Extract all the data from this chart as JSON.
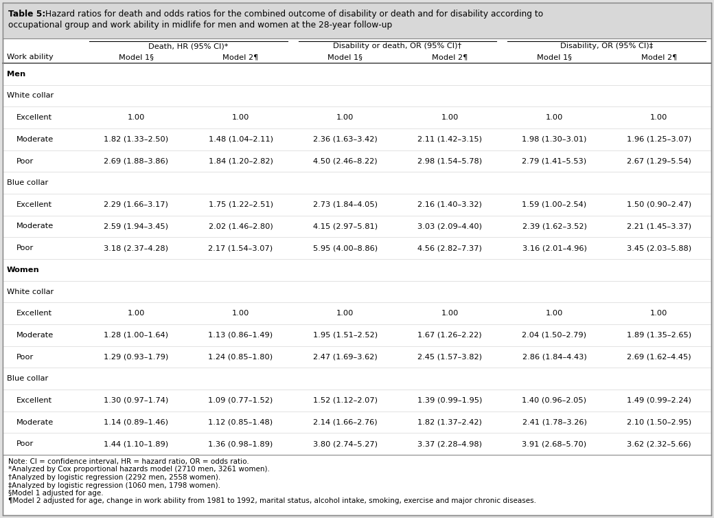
{
  "title_bold": "Table 5:",
  "title_rest": " Hazard ratios for death and odds ratios for the combined outcome of disability or death and for disability according to\noccupational group and work ability in midlife for men and women at the 28-year follow-up",
  "col_group_headers": [
    "Death, HR (95% CI)*",
    "Disability or death, OR (95% CI)†",
    "Disability, OR (95% CI)‡"
  ],
  "col_sub_headers": [
    "Work ability",
    "Model 1§",
    "Model 2¶",
    "Model 1§",
    "Model 2¶",
    "Model 1§",
    "Model 2¶"
  ],
  "rows": [
    {
      "label": "Men",
      "bold": true,
      "indent": 0,
      "data": [
        "",
        "",
        "",
        "",
        "",
        ""
      ]
    },
    {
      "label": "White collar",
      "bold": false,
      "indent": 0,
      "data": [
        "",
        "",
        "",
        "",
        "",
        ""
      ]
    },
    {
      "label": "Excellent",
      "bold": false,
      "indent": 1,
      "data": [
        "1.00",
        "1.00",
        "1.00",
        "1.00",
        "1.00",
        "1.00"
      ]
    },
    {
      "label": "Moderate",
      "bold": false,
      "indent": 1,
      "data": [
        "1.82 (1.33–2.50)",
        "1.48 (1.04–2.11)",
        "2.36 (1.63–3.42)",
        "2.11 (1.42–3.15)",
        "1.98 (1.30–3.01)",
        "1.96 (1.25–3.07)"
      ]
    },
    {
      "label": "Poor",
      "bold": false,
      "indent": 1,
      "data": [
        "2.69 (1.88–3.86)",
        "1.84 (1.20–2.82)",
        "4.50 (2.46–8.22)",
        "2.98 (1.54–5.78)",
        "2.79 (1.41–5.53)",
        "2.67 (1.29–5.54)"
      ]
    },
    {
      "label": "Blue collar",
      "bold": false,
      "indent": 0,
      "data": [
        "",
        "",
        "",
        "",
        "",
        ""
      ]
    },
    {
      "label": "Excellent",
      "bold": false,
      "indent": 1,
      "data": [
        "2.29 (1.66–3.17)",
        "1.75 (1.22–2.51)",
        "2.73 (1.84–4.05)",
        "2.16 (1.40–3.32)",
        "1.59 (1.00–2.54)",
        "1.50 (0.90–2.47)"
      ]
    },
    {
      "label": "Moderate",
      "bold": false,
      "indent": 1,
      "data": [
        "2.59 (1.94–3.45)",
        "2.02 (1.46–2.80)",
        "4.15 (2.97–5.81)",
        "3.03 (2.09–4.40)",
        "2.39 (1.62–3.52)",
        "2.21 (1.45–3.37)"
      ]
    },
    {
      "label": "Poor",
      "bold": false,
      "indent": 1,
      "data": [
        "3.18 (2.37–4.28)",
        "2.17 (1.54–3.07)",
        "5.95 (4.00–8.86)",
        "4.56 (2.82–7.37)",
        "3.16 (2.01–4.96)",
        "3.45 (2.03–5.88)"
      ]
    },
    {
      "label": "Women",
      "bold": true,
      "indent": 0,
      "data": [
        "",
        "",
        "",
        "",
        "",
        ""
      ]
    },
    {
      "label": "White collar",
      "bold": false,
      "indent": 0,
      "data": [
        "",
        "",
        "",
        "",
        "",
        ""
      ]
    },
    {
      "label": "Excellent",
      "bold": false,
      "indent": 1,
      "data": [
        "1.00",
        "1.00",
        "1.00",
        "1.00",
        "1.00",
        "1.00"
      ]
    },
    {
      "label": "Moderate",
      "bold": false,
      "indent": 1,
      "data": [
        "1.28 (1.00–1.64)",
        "1.13 (0.86–1.49)",
        "1.95 (1.51–2.52)",
        "1.67 (1.26–2.22)",
        "2.04 (1.50–2.79)",
        "1.89 (1.35–2.65)"
      ]
    },
    {
      "label": "Poor",
      "bold": false,
      "indent": 1,
      "data": [
        "1.29 (0.93–1.79)",
        "1.24 (0.85–1.80)",
        "2.47 (1.69–3.62)",
        "2.45 (1.57–3.82)",
        "2.86 (1.84–4.43)",
        "2.69 (1.62–4.45)"
      ]
    },
    {
      "label": "Blue collar",
      "bold": false,
      "indent": 0,
      "data": [
        "",
        "",
        "",
        "",
        "",
        ""
      ]
    },
    {
      "label": "Excellent",
      "bold": false,
      "indent": 1,
      "data": [
        "1.30 (0.97–1.74)",
        "1.09 (0.77–1.52)",
        "1.52 (1.12–2.07)",
        "1.39 (0.99–1.95)",
        "1.40 (0.96–2.05)",
        "1.49 (0.99–2.24)"
      ]
    },
    {
      "label": "Moderate",
      "bold": false,
      "indent": 1,
      "data": [
        "1.14 (0.89–1.46)",
        "1.12 (0.85–1.48)",
        "2.14 (1.66–2.76)",
        "1.82 (1.37–2.42)",
        "2.41 (1.78–3.26)",
        "2.10 (1.50–2.95)"
      ]
    },
    {
      "label": "Poor",
      "bold": false,
      "indent": 1,
      "data": [
        "1.44 (1.10–1.89)",
        "1.36 (0.98–1.89)",
        "3.80 (2.74–5.27)",
        "3.37 (2.28–4.98)",
        "3.91 (2.68–5.70)",
        "3.62 (2.32–5.66)"
      ]
    }
  ],
  "footnotes": [
    "Note: CI = confidence interval, HR = hazard ratio, OR = odds ratio.",
    "*Analyzed by Cox proportional hazards model (2710 men, 3261 women).",
    "†Analyzed by logistic regression (2292 men, 2558 women).",
    "‡Analyzed by logistic regression (1060 men, 1798 women).",
    "§Model 1 adjusted for age.",
    "¶Model 2 adjusted for age, change in work ability from 1981 to 1992, marital status, alcohol intake, smoking, exercise and major chronic diseases."
  ],
  "bg_color": "#e0e0e0",
  "table_bg": "#ffffff",
  "title_bg": "#d8d8d8",
  "font_size": 8.2,
  "title_font_size": 8.8
}
